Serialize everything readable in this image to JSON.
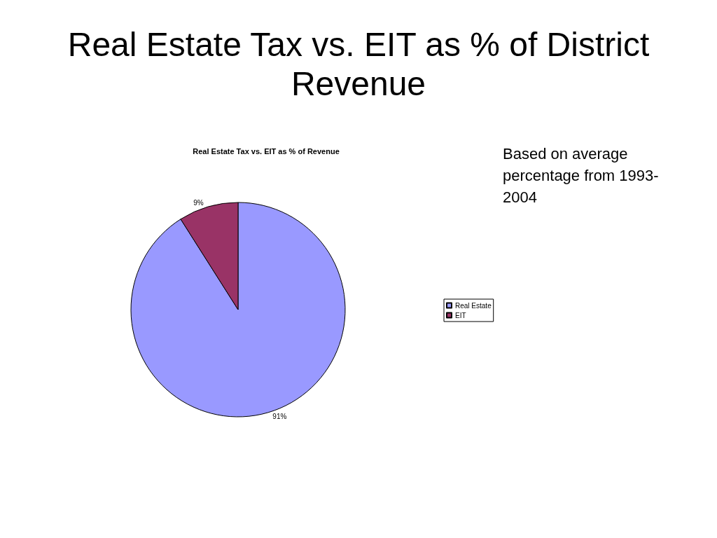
{
  "chart_data": {
    "type": "pie",
    "title": "Real Estate Tax vs. EIT as % of District Revenue",
    "subtitle": "Real Estate Tax vs. EIT as % of Revenue",
    "categories": [
      "Real Estate",
      "EIT"
    ],
    "values": [
      91,
      9
    ],
    "value_labels": [
      "91%",
      "9%"
    ],
    "colors": [
      "#9999ff",
      "#993366"
    ],
    "legend": "right",
    "annotations": [
      "Based on average percentage from 1993-2004"
    ]
  }
}
